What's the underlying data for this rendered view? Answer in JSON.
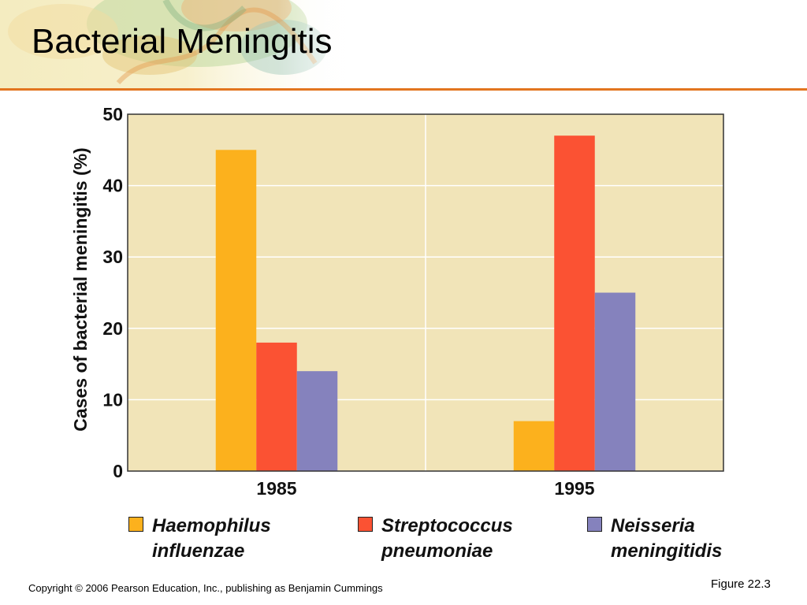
{
  "slide": {
    "title": "Bacterial Meningitis",
    "copyright": "Copyright © 2006 Pearson Education, Inc., publishing as Benjamin Cummings",
    "figure_label": "Figure 22.3"
  },
  "colors": {
    "title_rule": "#e2751f",
    "plot_background": "#f1e4b8",
    "gridline": "#ffffff"
  },
  "chart_data": {
    "type": "bar",
    "title": "",
    "xlabel": "",
    "ylabel": "Cases of bacterial meningitis (%)",
    "ylim": [
      0,
      50
    ],
    "yticks": [
      "0",
      "10",
      "20",
      "30",
      "40",
      "50"
    ],
    "categories": [
      "1985",
      "1995"
    ],
    "grid": true,
    "legend_position": "bottom",
    "series": [
      {
        "name": "Haemophilus influenzae",
        "label_lines": [
          "Haemophilus",
          "influenzae"
        ],
        "color": "#fcb11d",
        "values": [
          45,
          7
        ]
      },
      {
        "name": "Streptococcus pneumoniae",
        "label_lines": [
          "Streptococcus",
          "pneumoniae"
        ],
        "color": "#fb5233",
        "values": [
          18,
          47
        ]
      },
      {
        "name": "Neisseria meningitidis",
        "label_lines": [
          "Neisseria",
          "meningitidis"
        ],
        "color": "#8582bd",
        "values": [
          14,
          25
        ]
      }
    ]
  }
}
